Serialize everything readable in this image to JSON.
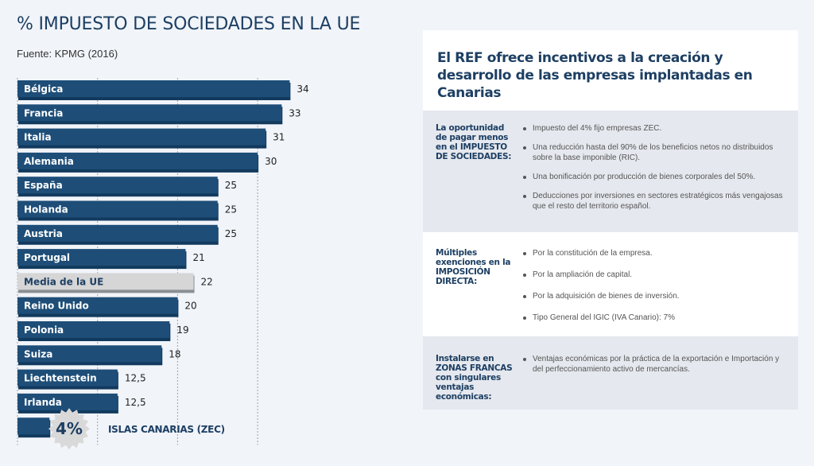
{
  "header": {
    "title": "% IMPUESTO DE SOCIEDADES EN LA UE",
    "source": "Fuente: KPMG (2016)"
  },
  "chart_data": {
    "type": "bar",
    "orientation": "horizontal",
    "title": "% IMPUESTO DE SOCIEDADES EN LA UE",
    "subtitle": "Fuente: KPMG (2016)",
    "xlabel": "",
    "ylabel": "",
    "xlim": [
      0,
      34
    ],
    "gridlines": [
      0,
      10,
      20,
      30
    ],
    "grid": true,
    "categories": [
      "Bélgica",
      "Francia",
      "Italia",
      "Alemania",
      "España",
      "Holanda",
      "Austria",
      "Portugal",
      "Media de la UE",
      "Reino Unido",
      "Polonia",
      "Suiza",
      "Liechtenstein",
      "Irlanda",
      "ISLAS CANARIAS (ZEC)"
    ],
    "values": [
      34,
      33,
      31,
      30,
      25,
      25,
      25,
      21,
      22,
      20,
      19,
      18,
      12.5,
      12.5,
      4
    ],
    "value_labels": [
      "34",
      "33",
      "31",
      "30",
      "25",
      "25",
      "25",
      "21",
      "22",
      "20",
      "19",
      "18",
      "12,5",
      "12,5",
      "4%"
    ],
    "highlight": {
      "Media de la UE": "#d6d6d6",
      "ISLAS CANARIAS (ZEC)": "#1e4e78"
    },
    "bar_color": "#1e4e78",
    "bar_shadow_color": "#123a5e",
    "badge_color": "#d9d9d9"
  },
  "panel": {
    "heading": "El REF ofrece incentivos a la creación y desarrollo de las empresas implantadas en Canarias",
    "sections": [
      {
        "title": "La oportunidad de pagar menos en el IMPUESTO DE SOCIEDADES:",
        "items": [
          "Impuesto del 4% fijo empresas ZEC.",
          "Una reducción hasta del 90% de los beneficios netos no distribuidos sobre la base imponible (RIC).",
          "Una bonificación por producción de bienes corporales del 50%.",
          "Deducciones por inversiones en sectores estratégicos más vengajosas que el resto del territorio español."
        ]
      },
      {
        "title": "Múltiples exenciones en la IMPOSICIÓN DIRECTA:",
        "items": [
          "Por la constitución de la empresa.",
          "Por la ampliación de capital.",
          "Por la adquisición de bienes de inversión.",
          "Tipo General del IGIC (IVA Canario): 7%"
        ]
      },
      {
        "title": "Instalarse en ZONAS FRANCAS con singulares ventajas económicas:",
        "items": [
          "Ventajas económicas por la práctica de la exportación e Importación y del perfeccionamiento activo de mercancías."
        ]
      }
    ]
  }
}
